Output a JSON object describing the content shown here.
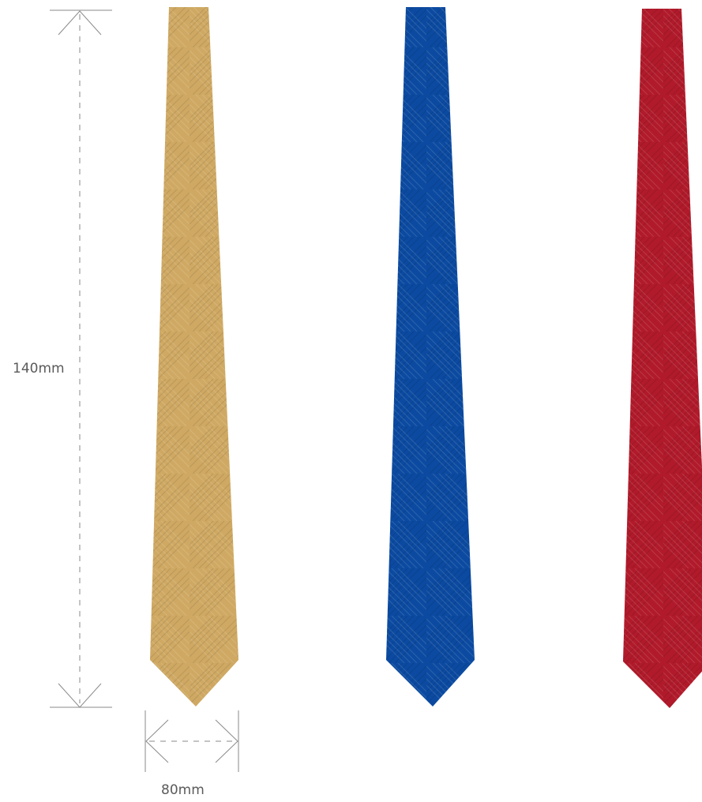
{
  "dimensions": {
    "height_label": "140mm",
    "width_label": "80mm"
  },
  "ties": [
    {
      "name": "gold-tie",
      "color": "#cfa963"
    },
    {
      "name": "blue-tie",
      "color": "#0b4aa0"
    },
    {
      "name": "red-tie",
      "color": "#b01a2a"
    }
  ],
  "stroke_color": "#8a8a8a"
}
